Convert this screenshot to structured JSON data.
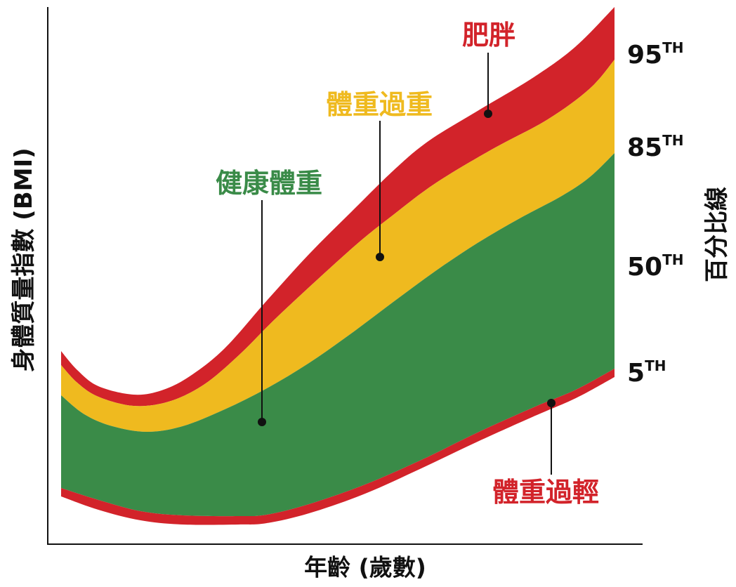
{
  "chart_data": {
    "type": "area",
    "xlabel": "年齡 (歲數)",
    "ylabel": "身體質量指數 (BMI)",
    "y2label": "百分比線",
    "grid": false,
    "legend": "none",
    "percentiles": [
      {
        "value": "95",
        "suffix": "TH"
      },
      {
        "value": "85",
        "suffix": "TH"
      },
      {
        "value": "50",
        "suffix": "TH"
      },
      {
        "value": "5",
        "suffix": "TH"
      }
    ],
    "bands": [
      {
        "name": "肥胖",
        "color": "#D2232A"
      },
      {
        "name": "體重過重",
        "color": "#EFBA1F"
      },
      {
        "name": "健康體重",
        "color": "#3A8B48"
      },
      {
        "name": "體重過輕",
        "color": "#D2232A"
      }
    ]
  }
}
